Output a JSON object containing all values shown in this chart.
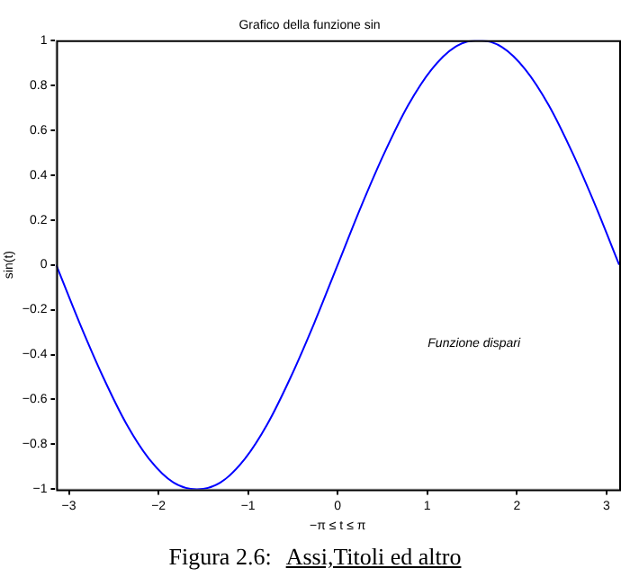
{
  "chart_data": {
    "type": "line",
    "title": "Grafico della funzione sin",
    "xlabel": "−π ≤ t ≤ π",
    "ylabel": "sin(t)",
    "x": [
      -3.1416,
      -2.8798,
      -2.618,
      -2.3562,
      -2.0944,
      -1.8326,
      -1.5708,
      -1.309,
      -1.0472,
      -0.7854,
      -0.5236,
      -0.2618,
      0,
      0.2618,
      0.5236,
      0.7854,
      1.0472,
      1.309,
      1.5708,
      1.8326,
      2.0944,
      2.3562,
      2.618,
      2.8798,
      3.1416
    ],
    "series": [
      {
        "color": "#0000ff",
        "values": [
          0,
          -0.26,
          -0.5,
          -0.71,
          -0.87,
          -0.97,
          -1,
          -0.97,
          -0.87,
          -0.71,
          -0.5,
          -0.26,
          0,
          0.26,
          0.5,
          0.71,
          0.87,
          0.97,
          1,
          0.97,
          0.87,
          0.71,
          0.5,
          0.26,
          0
        ]
      }
    ],
    "xlim": [
      -3.1416,
      3.1416
    ],
    "xticks": [
      -3,
      -2,
      -1,
      0,
      1,
      2,
      3
    ],
    "ylim": [
      -1,
      1
    ],
    "yticks": [
      -1,
      -0.8,
      -0.6,
      -0.4,
      -0.2,
      0,
      0.2,
      0.4,
      0.6,
      0.8,
      1
    ],
    "grid": false,
    "legend": false,
    "marker": "none",
    "line_style": "solid",
    "annotations": [
      "Funzione dispari",
      "Figura 2.6:",
      "Assi,Titoli ed altro"
    ]
  }
}
